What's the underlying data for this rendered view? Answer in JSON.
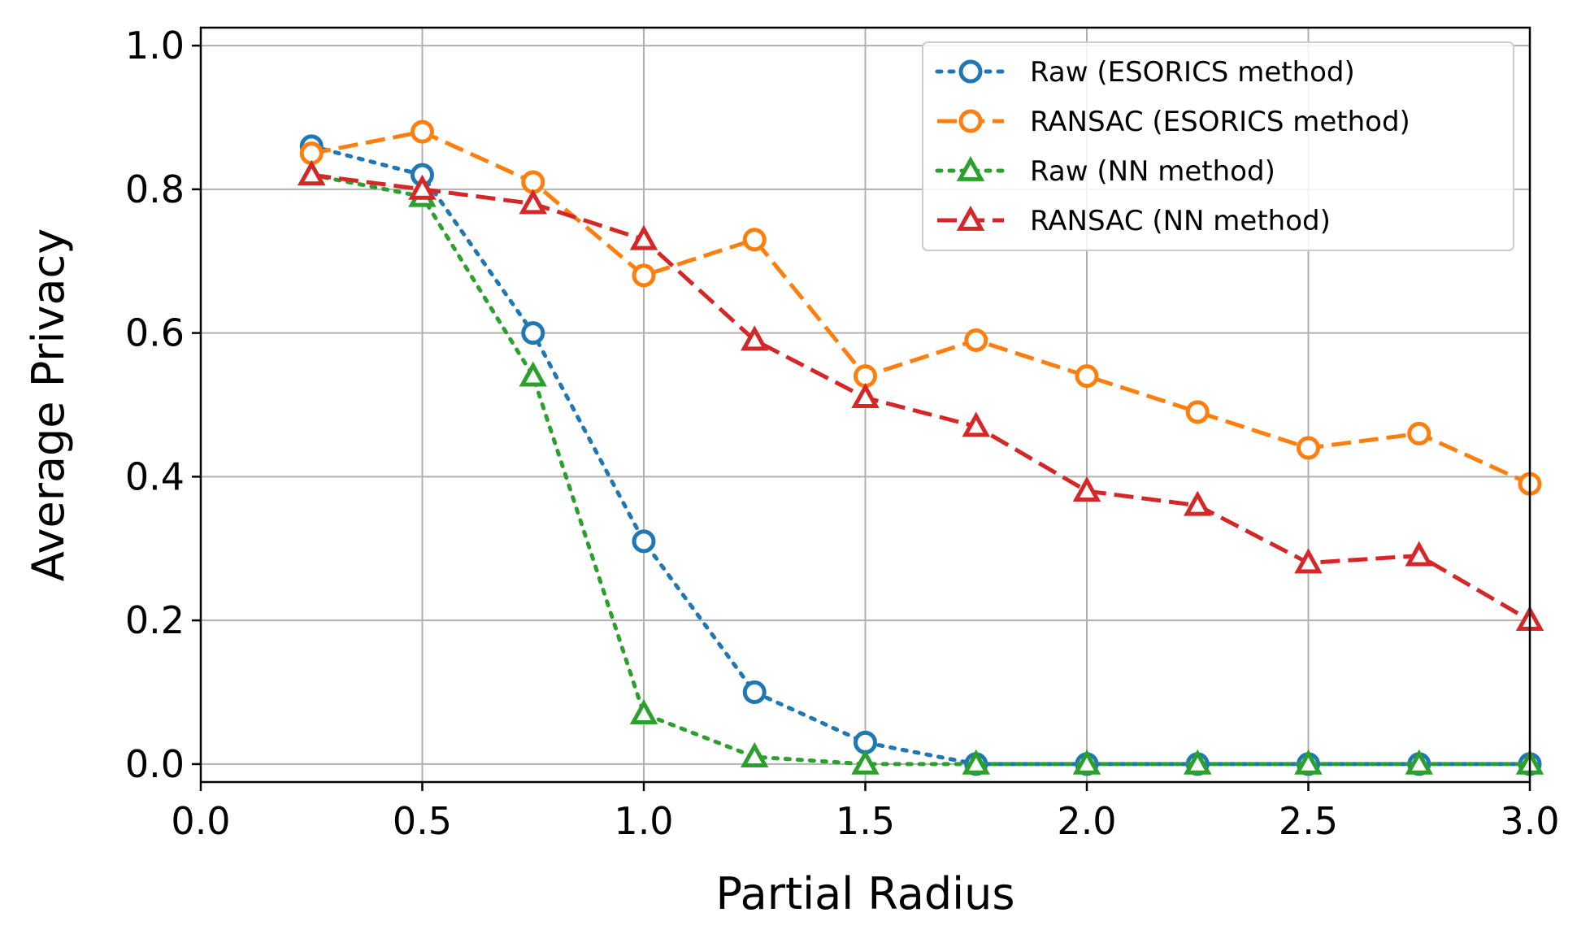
{
  "chart_data": {
    "type": "line",
    "title": "",
    "xlabel": "Partial Radius",
    "ylabel": "Average Privacy",
    "xlim": [
      0.0,
      3.0
    ],
    "ylim": [
      -0.025,
      1.025
    ],
    "xticks": [
      "0.0",
      "0.5",
      "1.0",
      "1.5",
      "2.0",
      "2.5",
      "3.0"
    ],
    "yticks": [
      "0.0",
      "0.2",
      "0.4",
      "0.6",
      "0.8",
      "1.0"
    ],
    "grid": true,
    "legend_position": "top-right",
    "x": [
      0.25,
      0.5,
      0.75,
      1.0,
      1.25,
      1.5,
      1.75,
      2.0,
      2.25,
      2.5,
      2.75,
      3.0
    ],
    "series": [
      {
        "name": "Raw (ESORICS method)",
        "color": "#1f77b4",
        "linestyle": "dotted",
        "marker": "circle",
        "values": [
          0.86,
          0.82,
          0.6,
          0.31,
          0.1,
          0.03,
          0.0,
          0.0,
          0.0,
          0.0,
          0.0,
          0.0
        ]
      },
      {
        "name": "RANSAC (ESORICS method)",
        "color": "#ff7f0e",
        "linestyle": "dashed",
        "marker": "circle",
        "values": [
          0.85,
          0.88,
          0.81,
          0.68,
          0.73,
          0.54,
          0.59,
          0.54,
          0.49,
          0.44,
          0.46,
          0.39
        ]
      },
      {
        "name": "Raw (NN method)",
        "color": "#2ca02c",
        "linestyle": "dotted",
        "marker": "triangle",
        "values": [
          0.82,
          0.79,
          0.54,
          0.07,
          0.01,
          0.0,
          0.0,
          0.0,
          0.0,
          0.0,
          0.0,
          0.0
        ]
      },
      {
        "name": "RANSAC (NN method)",
        "color": "#d62728",
        "linestyle": "dashed",
        "marker": "triangle",
        "values": [
          0.82,
          0.8,
          0.78,
          0.73,
          0.59,
          0.51,
          0.47,
          0.38,
          0.36,
          0.28,
          0.29,
          0.2
        ]
      }
    ]
  }
}
